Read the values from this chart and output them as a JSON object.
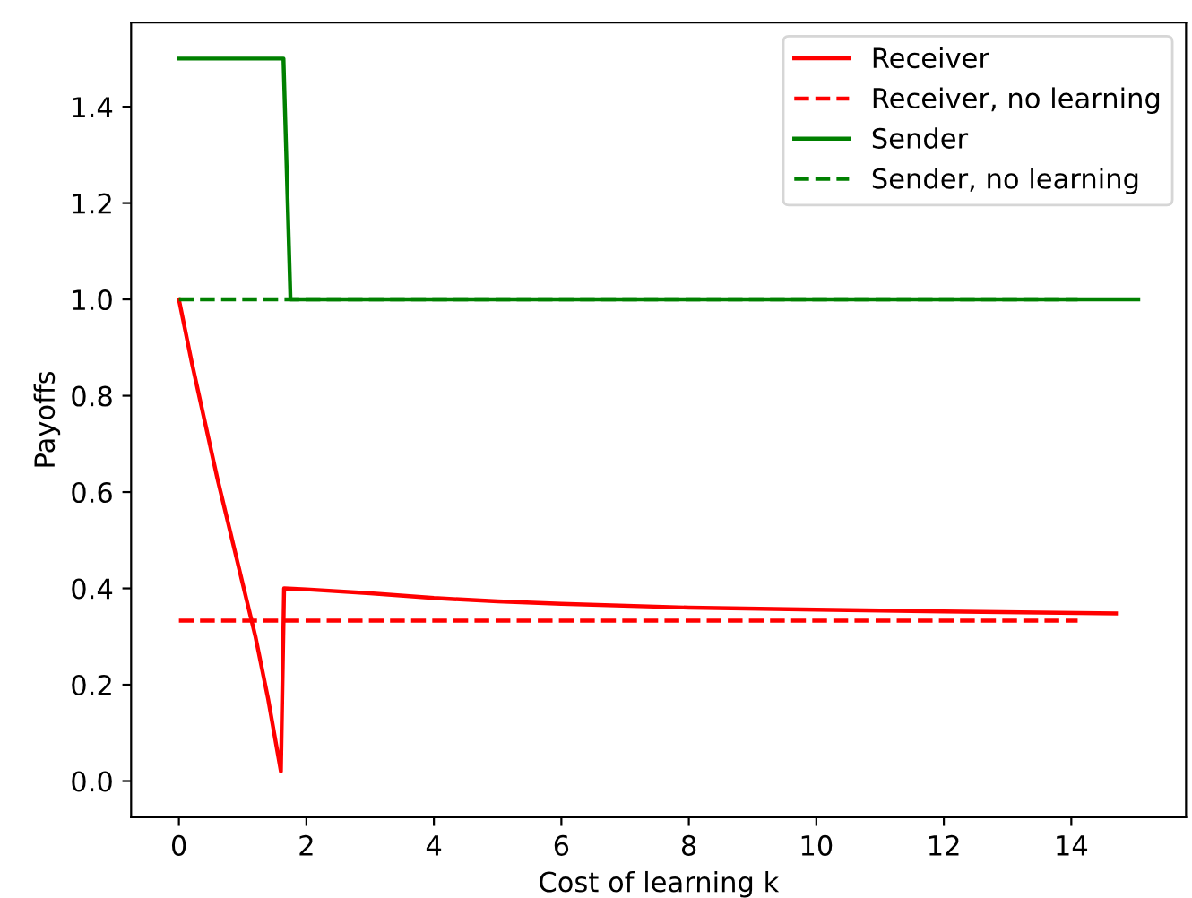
{
  "chart_data": {
    "type": "line",
    "xlabel": "Cost of learning k",
    "ylabel": "Payoffs",
    "xlim": [
      -0.75,
      15.8
    ],
    "ylim": [
      -0.075,
      1.575
    ],
    "xticks": [
      0,
      2,
      4,
      6,
      8,
      10,
      12,
      14
    ],
    "yticks": [
      {
        "value": 0,
        "label": "0.0"
      },
      {
        "value": 0.2,
        "label": "0.2"
      },
      {
        "value": 0.4,
        "label": "0.4"
      },
      {
        "value": 0.6,
        "label": "0.6"
      },
      {
        "value": 0.8,
        "label": "0.8"
      },
      {
        "value": 1,
        "label": "1.0"
      },
      {
        "value": 1.2,
        "label": "1.2"
      },
      {
        "value": 1.4,
        "label": "1.4"
      }
    ],
    "grid": false,
    "legend": "top right",
    "series": [
      {
        "name": "Receiver",
        "color": "#ff0000",
        "line_style": "solid",
        "x": [
          0,
          0.2,
          0.4,
          0.6,
          0.8,
          1.0,
          1.2,
          1.4,
          1.6,
          1.65,
          2,
          3,
          4,
          5,
          6,
          8,
          10,
          12,
          14.7
        ],
        "values": [
          1.0,
          0.87,
          0.75,
          0.63,
          0.52,
          0.41,
          0.3,
          0.17,
          0.02,
          0.4,
          0.398,
          0.39,
          0.38,
          0.373,
          0.368,
          0.36,
          0.356,
          0.352,
          0.348
        ]
      },
      {
        "name": "Receiver, no learning",
        "color": "#ff0000",
        "line_style": "dashed",
        "x": [
          0,
          14.1
        ],
        "values": [
          0.333,
          0.333
        ]
      },
      {
        "name": "Sender",
        "color": "#008000",
        "line_style": "solid",
        "x": [
          0,
          1.64,
          1.75,
          15.05
        ],
        "values": [
          1.5,
          1.5,
          1.0,
          1.0
        ]
      },
      {
        "name": "Sender, no learning",
        "color": "#008000",
        "line_style": "dashed",
        "x": [
          0,
          14.1
        ],
        "values": [
          1.0,
          1.0
        ]
      }
    ]
  }
}
